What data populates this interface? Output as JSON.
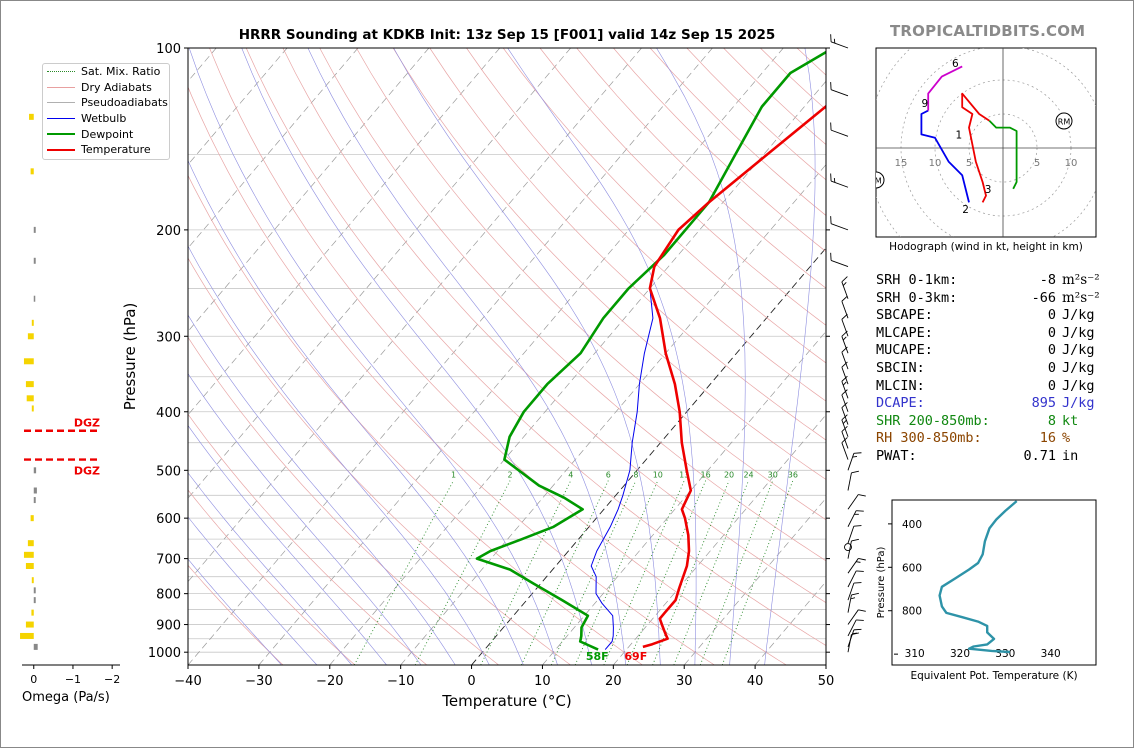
{
  "brand": "TROPICALTIDBITS.COM",
  "title": "HRRR Sounding at KDKB Init: 13z Sep 15 [F001] valid 14z Sep 15 2025",
  "legend": {
    "items": [
      {
        "label": "Sat. Mix. Ratio",
        "color": "#2a8a2a",
        "style": "dotted"
      },
      {
        "label": "Dry Adiabats",
        "color": "#e8a0a0",
        "style": "solid"
      },
      {
        "label": "Pseudoadiabats",
        "color": "#b0b0b0",
        "style": "solid"
      },
      {
        "label": "Wetbulb",
        "color": "#0000ee",
        "style": "solid"
      },
      {
        "label": "Dewpoint",
        "color": "#009900",
        "style": "bold"
      },
      {
        "label": "Temperature",
        "color": "#ee0000",
        "style": "bold"
      }
    ]
  },
  "colors": {
    "temperature": "#ee0000",
    "dewpoint": "#009900",
    "wetbulb": "#0000ee",
    "dgz": "#ee0000",
    "omega_up": "#f5d400",
    "omega_down": "#888888",
    "thetae": "#2e93a8",
    "dcape": "#3333cc",
    "shr": "#118811",
    "rh": "#8b4500"
  },
  "chart_data": [
    {
      "type": "line",
      "name": "skew-t",
      "xlabel": "Temperature (°C)",
      "ylabel": "Pressure (hPa)",
      "xlim": [
        -40,
        50
      ],
      "ylim": [
        1050,
        100
      ],
      "x_ticks": [
        -40,
        -30,
        -20,
        -10,
        0,
        10,
        20,
        30,
        40,
        50
      ],
      "x_tick_labels": [
        "−40",
        "−30",
        "−20",
        "−10",
        "0",
        "10",
        "20",
        "30",
        "40",
        "50"
      ],
      "y_ticks": [
        100,
        200,
        300,
        400,
        500,
        600,
        700,
        800,
        900,
        1000
      ],
      "y_scale": "log",
      "grid": true,
      "series": [
        {
          "name": "Temperature",
          "points": [
            [
              22,
              980
            ],
            [
              23,
              970
            ],
            [
              24.5,
              950
            ],
            [
              23.5,
              930
            ],
            [
              22,
              900
            ],
            [
              21,
              880
            ],
            [
              21,
              860
            ],
            [
              21,
              820
            ],
            [
              20,
              780
            ],
            [
              18.5,
              720
            ],
            [
              17,
              680
            ],
            [
              15,
              640
            ],
            [
              12.5,
              600
            ],
            [
              11,
              580
            ],
            [
              10,
              540
            ],
            [
              7,
              500
            ],
            [
              3,
              450
            ],
            [
              -1,
              400
            ],
            [
              -5,
              360
            ],
            [
              -10,
              320
            ],
            [
              -15,
              280
            ],
            [
              -20,
              250
            ],
            [
              -22,
              230
            ],
            [
              -23,
              200
            ],
            [
              -22,
              180
            ],
            [
              -19.5,
              150
            ],
            [
              -17,
              125
            ],
            [
              -13,
              100
            ]
          ]
        },
        {
          "name": "Dewpoint",
          "points": [
            [
              16,
              990
            ],
            [
              12.5,
              960
            ],
            [
              12,
              940
            ],
            [
              11,
              910
            ],
            [
              10.5,
              870
            ],
            [
              5,
              820
            ],
            [
              -1,
              770
            ],
            [
              -6,
              730
            ],
            [
              -12,
              700
            ],
            [
              -11,
              680
            ],
            [
              -8,
              650
            ],
            [
              -5,
              620
            ],
            [
              -3,
              580
            ],
            [
              -7,
              555
            ],
            [
              -12,
              530
            ],
            [
              -20,
              480
            ],
            [
              -22,
              440
            ],
            [
              -23,
              400
            ],
            [
              -23,
              360
            ],
            [
              -22,
              320
            ],
            [
              -23,
              280
            ],
            [
              -23,
              250
            ],
            [
              -22,
              220
            ],
            [
              -22,
              180
            ],
            [
              -24,
              150
            ],
            [
              -26,
              125
            ],
            [
              -26,
              110
            ],
            [
              -23,
              100
            ]
          ]
        },
        {
          "name": "Wetbulb",
          "points": [
            [
              17,
              990
            ],
            [
              17,
              960
            ],
            [
              16.5,
              940
            ],
            [
              15.5,
              910
            ],
            [
              14,
              870
            ],
            [
              11,
              830
            ],
            [
              9,
              800
            ],
            [
              7,
              750
            ],
            [
              5,
              720
            ],
            [
              4,
              680
            ],
            [
              3,
              620
            ],
            [
              2,
              580
            ],
            [
              1,
              550
            ],
            [
              -1,
              500
            ],
            [
              -4,
              450
            ],
            [
              -7,
              400
            ],
            [
              -10,
              360
            ],
            [
              -13,
              320
            ],
            [
              -16,
              280
            ],
            [
              -20,
              250
            ],
            [
              -22,
              230
            ]
          ]
        }
      ],
      "mixing_ratio_labels": [
        "1",
        "2",
        "4",
        "6",
        "8",
        "10",
        "13",
        "16",
        "20",
        "24",
        "30",
        "36"
      ],
      "surface_labels": {
        "dewpoint": "58F",
        "temperature": "69F"
      }
    },
    {
      "type": "bar",
      "name": "omega",
      "xlabel": "Omega (Pa/s)",
      "xlim": [
        0.3,
        -2.2
      ],
      "x_tick_labels": [
        "0",
        "−1",
        "−2"
      ],
      "dgz_label": "DGZ",
      "dgz_levels_hpa": [
        430,
        480
      ],
      "values": [
        {
          "p": 130,
          "w": 0.12
        },
        {
          "p": 160,
          "w": 0.08
        },
        {
          "p": 200,
          "w": -0.05
        },
        {
          "p": 225,
          "w": -0.05
        },
        {
          "p": 260,
          "w": -0.02
        },
        {
          "p": 285,
          "w": 0.05
        },
        {
          "p": 300,
          "w": 0.15
        },
        {
          "p": 330,
          "w": 0.25
        },
        {
          "p": 360,
          "w": 0.2
        },
        {
          "p": 380,
          "w": 0.18
        },
        {
          "p": 395,
          "w": 0.05
        },
        {
          "p": 500,
          "w": -0.06
        },
        {
          "p": 540,
          "w": -0.08
        },
        {
          "p": 560,
          "w": -0.05
        },
        {
          "p": 600,
          "w": 0.08
        },
        {
          "p": 660,
          "w": 0.15
        },
        {
          "p": 690,
          "w": 0.25
        },
        {
          "p": 720,
          "w": 0.2
        },
        {
          "p": 760,
          "w": 0.05
        },
        {
          "p": 790,
          "w": -0.05
        },
        {
          "p": 820,
          "w": -0.05
        },
        {
          "p": 860,
          "w": 0.06
        },
        {
          "p": 900,
          "w": 0.2
        },
        {
          "p": 940,
          "w": 0.35
        },
        {
          "p": 980,
          "w": -0.1
        }
      ]
    },
    {
      "type": "line",
      "name": "hodograph",
      "caption": "Hodograph (wind in kt, height in km)",
      "ring_labels": [
        "15",
        "10",
        "5",
        "5",
        "10"
      ],
      "markers": [
        "RM",
        "LM"
      ],
      "height_labels": [
        "1",
        "2",
        "3",
        "6",
        "9"
      ],
      "series": [
        {
          "name": "0-1 km",
          "color": "#ee0000",
          "points": [
            [
              -3,
              -8
            ],
            [
              -2.5,
              -7
            ],
            [
              -3,
              -5
            ],
            [
              -4,
              -2
            ],
            [
              -5,
              3
            ],
            [
              -4.5,
              5
            ],
            [
              -6,
              6
            ],
            [
              -6,
              8
            ],
            [
              -3.5,
              5
            ],
            [
              -2,
              4
            ]
          ]
        },
        {
          "name": "1-3 km",
          "color": "#009900",
          "points": [
            [
              -2,
              4
            ],
            [
              -1,
              3
            ],
            [
              1,
              3
            ],
            [
              2,
              2.5
            ],
            [
              2,
              0
            ],
            [
              2,
              -5
            ],
            [
              1.5,
              -6
            ]
          ]
        },
        {
          "name": "3-6 km",
          "color": "#0000ee",
          "points": [
            [
              -5,
              -8
            ],
            [
              -6,
              -4
            ],
            [
              -8,
              -2
            ],
            [
              -10,
              1.5
            ],
            [
              -12,
              2
            ],
            [
              -12,
              5
            ],
            [
              -11,
              5.5
            ]
          ]
        },
        {
          "name": "6-9 km",
          "color": "#cc00cc",
          "points": [
            [
              -11,
              5.5
            ],
            [
              -11,
              8
            ],
            [
              -9,
              10.5
            ],
            [
              -6,
              12
            ]
          ]
        }
      ]
    },
    {
      "type": "line",
      "name": "theta-e",
      "xlabel": "Equivalent Pot. Temperature (K)",
      "ylabel": "Pressure (hPa)",
      "xlim": [
        305,
        350
      ],
      "ylim": [
        1050,
        290
      ],
      "x_tick_labels": [
        "310",
        "320",
        "330",
        "340"
      ],
      "y_tick_labels": [
        "400",
        "600",
        "800"
      ],
      "series": [
        {
          "name": "Theta-E",
          "points": [
            [
              332.5,
              295
            ],
            [
              330,
              340
            ],
            [
              328,
              380
            ],
            [
              326.5,
              420
            ],
            [
              325.5,
              480
            ],
            [
              325,
              540
            ],
            [
              324,
              580
            ],
            [
              322,
              610
            ],
            [
              319,
              650
            ],
            [
              316,
              690
            ],
            [
              315.5,
              730
            ],
            [
              316,
              780
            ],
            [
              317,
              810
            ],
            [
              320.5,
              830
            ],
            [
              324,
              850
            ],
            [
              326,
              870
            ],
            [
              326,
              900
            ],
            [
              327.5,
              930
            ],
            [
              326,
              955
            ],
            [
              323,
              965
            ],
            [
              322,
              975
            ],
            [
              327,
              985
            ],
            [
              331,
              990
            ]
          ]
        }
      ]
    }
  ],
  "indices": [
    {
      "label": "SRH 0-1km:",
      "value": "-8",
      "unit": "m²s⁻²",
      "color": "#000000"
    },
    {
      "label": "SRH 0-3km:",
      "value": "-66",
      "unit": "m²s⁻²",
      "color": "#000000"
    },
    {
      "label": "SBCAPE:",
      "value": "0",
      "unit": "J/kg",
      "color": "#000000"
    },
    {
      "label": "MLCAPE:",
      "value": "0",
      "unit": "J/kg",
      "color": "#000000"
    },
    {
      "label": "MUCAPE:",
      "value": "0",
      "unit": "J/kg",
      "color": "#000000"
    },
    {
      "label": "SBCIN:",
      "value": "0",
      "unit": "J/kg",
      "color": "#000000"
    },
    {
      "label": "MLCIN:",
      "value": "0",
      "unit": "J/kg",
      "color": "#000000"
    },
    {
      "label": "DCAPE:",
      "value": "895",
      "unit": "J/kg",
      "color": "#3333cc"
    },
    {
      "label": "SHR 200-850mb:",
      "value": "8",
      "unit": "kt",
      "color": "#118811"
    },
    {
      "label": "RH 300-850mb:",
      "value": "16",
      "unit": "%",
      "color": "#8b4500"
    },
    {
      "label": "PWAT:",
      "value": "0.71",
      "unit": "in",
      "color": "#000000"
    }
  ]
}
